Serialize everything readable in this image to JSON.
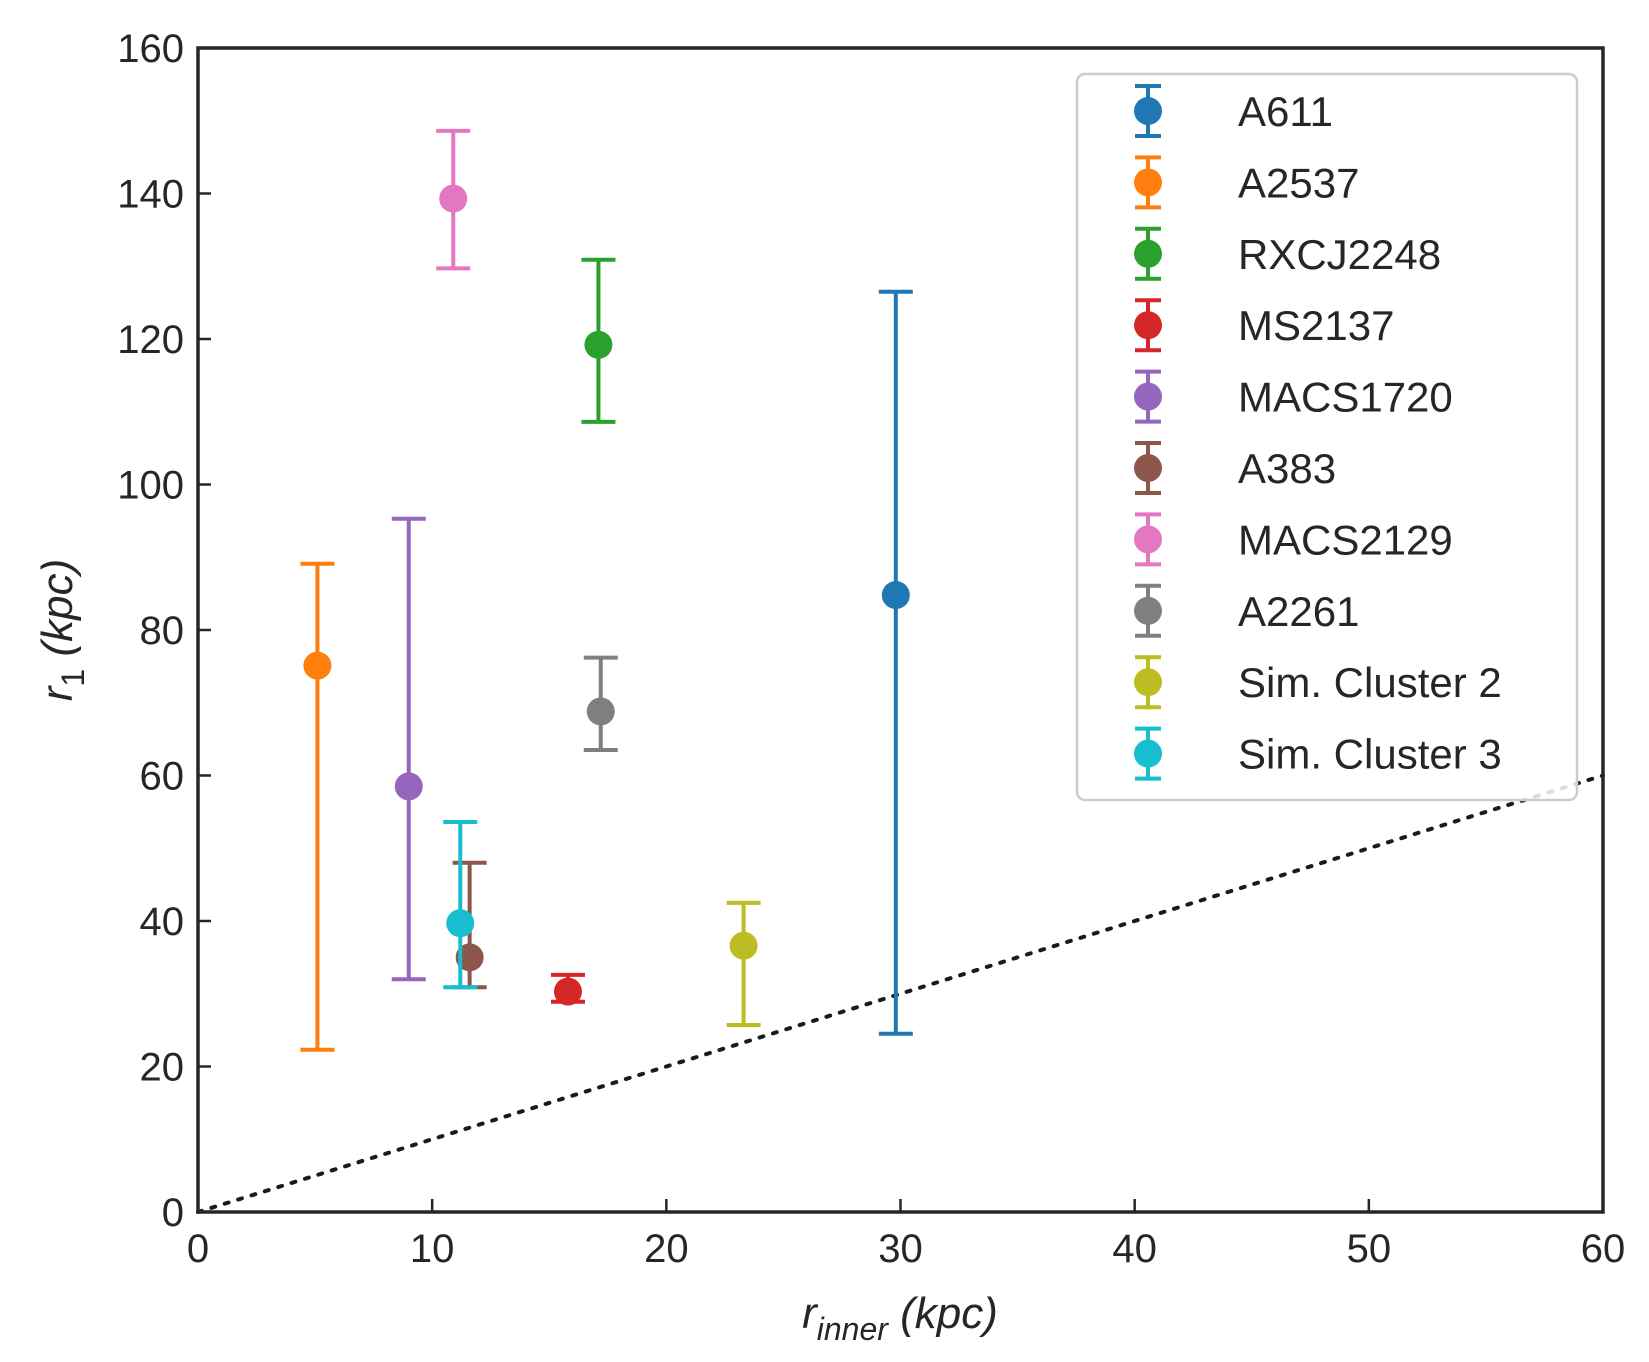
{
  "chart_data": {
    "type": "scatter",
    "title": "",
    "xlabel_main": "r",
    "xlabel_sub": "inner",
    "xlabel_unit": " (kpc)",
    "ylabel_main": "r",
    "ylabel_sub": "1",
    "ylabel_unit": " (kpc)",
    "xlim": [
      0,
      60
    ],
    "ylim": [
      0,
      160
    ],
    "xticks": [
      0,
      10,
      20,
      30,
      40,
      50,
      60
    ],
    "yticks": [
      0,
      20,
      40,
      60,
      80,
      100,
      120,
      140,
      160
    ],
    "grid": false,
    "legend_position": "top-right",
    "reference_line": {
      "style": "dotted",
      "color": "#1a1a1a",
      "from": [
        0,
        0
      ],
      "to": [
        60,
        60
      ]
    },
    "series": [
      {
        "name": "A611",
        "color": "#1f77b4",
        "x": 29.8,
        "y": 84.8,
        "y_low": 24.5,
        "y_high": 126.5
      },
      {
        "name": "A2537",
        "color": "#ff7f0e",
        "x": 5.1,
        "y": 75.1,
        "y_low": 22.3,
        "y_high": 89.1
      },
      {
        "name": "RXCJ2248",
        "color": "#2ca02c",
        "x": 17.1,
        "y": 119.2,
        "y_low": 108.6,
        "y_high": 130.9
      },
      {
        "name": "MS2137",
        "color": "#d62728",
        "x": 15.8,
        "y": 30.3,
        "y_low": 28.9,
        "y_high": 32.6
      },
      {
        "name": "MACS1720",
        "color": "#9467bd",
        "x": 9.0,
        "y": 58.5,
        "y_low": 32.0,
        "y_high": 95.3
      },
      {
        "name": "A383",
        "color": "#8c564b",
        "x": 11.6,
        "y": 35.0,
        "y_low": 30.9,
        "y_high": 48.0
      },
      {
        "name": "MACS2129",
        "color": "#e377c2",
        "x": 10.9,
        "y": 139.3,
        "y_low": 129.7,
        "y_high": 148.6
      },
      {
        "name": "A2261",
        "color": "#7f7f7f",
        "x": 17.2,
        "y": 68.8,
        "y_low": 63.5,
        "y_high": 76.2
      },
      {
        "name": "Sim. Cluster 2",
        "color": "#bcbd22",
        "x": 23.3,
        "y": 36.6,
        "y_low": 25.7,
        "y_high": 42.5
      },
      {
        "name": "Sim. Cluster 3",
        "color": "#17becf",
        "x": 11.2,
        "y": 39.7,
        "y_low": 30.9,
        "y_high": 53.6
      }
    ]
  }
}
